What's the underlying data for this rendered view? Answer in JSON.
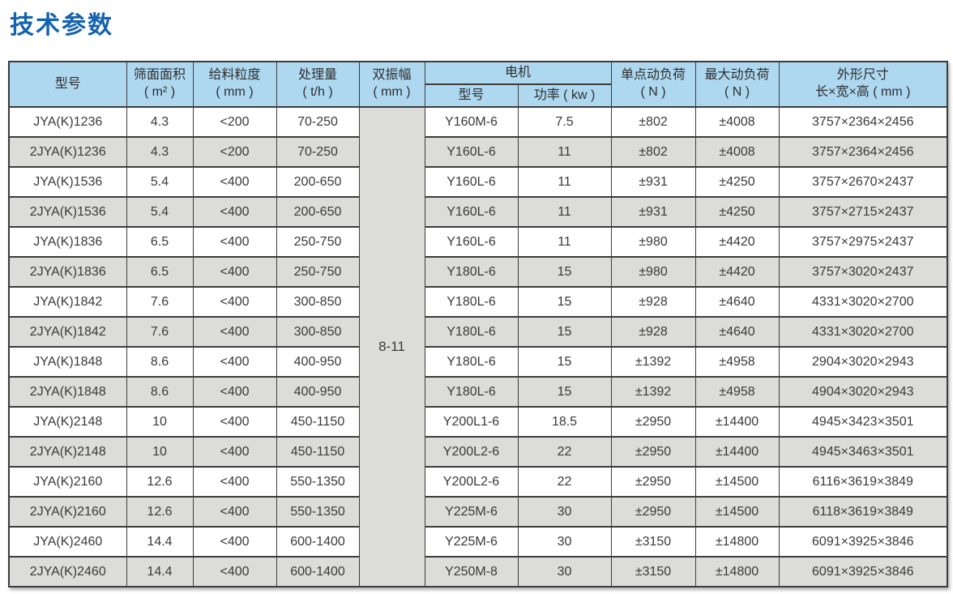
{
  "page_title": "技术参数",
  "colors": {
    "title": "#1563ae",
    "header_bg": "#aed8f0",
    "row_alt_bg": "#dcdcda",
    "border": "#3c3c3c"
  },
  "table": {
    "headers": {
      "model": "型号",
      "screen_area_l1": "筛面面积",
      "screen_area_l2": "( m² )",
      "feed_size_l1": "给料粒度",
      "feed_size_l2": "( mm )",
      "capacity_l1": "处理量",
      "capacity_l2": "( t/h )",
      "amplitude_l1": "双振幅",
      "amplitude_l2": "( mm )",
      "motor_group": "电机",
      "motor_model": "型号",
      "motor_power": "功率 ( kw )",
      "unit_load_l1": "单点动负荷",
      "unit_load_l2": "( N )",
      "max_load_l1": "最大动负荷",
      "max_load_l2": "( N )",
      "dimensions_l1": "外形尺寸",
      "dimensions_l2": "长×宽×高 ( mm )"
    },
    "amplitude_value": "8-11",
    "rows": [
      {
        "model": "JYA(K)1236",
        "area": "4.3",
        "feed": "<200",
        "capacity": "70-250",
        "motor": "Y160M-6",
        "power": "7.5",
        "unit_load": "±802",
        "max_load": "±4008",
        "size": "3757×2364×2456"
      },
      {
        "model": "2JYA(K)1236",
        "area": "4.3",
        "feed": "<200",
        "capacity": "70-250",
        "motor": "Y160L-6",
        "power": "11",
        "unit_load": "±802",
        "max_load": "±4008",
        "size": "3757×2364×2456"
      },
      {
        "model": "JYA(K)1536",
        "area": "5.4",
        "feed": "<400",
        "capacity": "200-650",
        "motor": "Y160L-6",
        "power": "11",
        "unit_load": "±931",
        "max_load": "±4250",
        "size": "3757×2670×2437"
      },
      {
        "model": "2JYA(K)1536",
        "area": "5.4",
        "feed": "<400",
        "capacity": "200-650",
        "motor": "Y160L-6",
        "power": "11",
        "unit_load": "±931",
        "max_load": "±4250",
        "size": "3757×2715×2437"
      },
      {
        "model": "JYA(K)1836",
        "area": "6.5",
        "feed": "<400",
        "capacity": "250-750",
        "motor": "Y160L-6",
        "power": "11",
        "unit_load": "±980",
        "max_load": "±4420",
        "size": "3757×2975×2437"
      },
      {
        "model": "2JYA(K)1836",
        "area": "6.5",
        "feed": "<400",
        "capacity": "250-750",
        "motor": "Y180L-6",
        "power": "15",
        "unit_load": "±980",
        "max_load": "±4420",
        "size": "3757×3020×2437"
      },
      {
        "model": "JYA(K)1842",
        "area": "7.6",
        "feed": "<400",
        "capacity": "300-850",
        "motor": "Y180L-6",
        "power": "15",
        "unit_load": "±928",
        "max_load": "±4640",
        "size": "4331×3020×2700"
      },
      {
        "model": "2JYA(K)1842",
        "area": "7.6",
        "feed": "<400",
        "capacity": "300-850",
        "motor": "Y180L-6",
        "power": "15",
        "unit_load": "±928",
        "max_load": "±4640",
        "size": "4331×3020×2700"
      },
      {
        "model": "JYA(K)1848",
        "area": "8.6",
        "feed": "<400",
        "capacity": "400-950",
        "motor": "Y180L-6",
        "power": "15",
        "unit_load": "±1392",
        "max_load": "±4958",
        "size": "2904×3020×2943"
      },
      {
        "model": "2JYA(K)1848",
        "area": "8.6",
        "feed": "<400",
        "capacity": "400-950",
        "motor": "Y180L-6",
        "power": "15",
        "unit_load": "±1392",
        "max_load": "±4958",
        "size": "4904×3020×2943"
      },
      {
        "model": "JYA(K)2148",
        "area": "10",
        "feed": "<400",
        "capacity": "450-1150",
        "motor": "Y200L1-6",
        "power": "18.5",
        "unit_load": "±2950",
        "max_load": "±14400",
        "size": "4945×3423×3501"
      },
      {
        "model": "2JYA(K)2148",
        "area": "10",
        "feed": "<400",
        "capacity": "450-1150",
        "motor": "Y200L2-6",
        "power": "22",
        "unit_load": "±2950",
        "max_load": "±14400",
        "size": "4945×3463×3501"
      },
      {
        "model": "JYA(K)2160",
        "area": "12.6",
        "feed": "<400",
        "capacity": "550-1350",
        "motor": "Y200L2-6",
        "power": "22",
        "unit_load": "±2950",
        "max_load": "±14500",
        "size": "6116×3619×3849"
      },
      {
        "model": "2JYA(K)2160",
        "area": "12.6",
        "feed": "<400",
        "capacity": "550-1350",
        "motor": "Y225M-6",
        "power": "30",
        "unit_load": "±2950",
        "max_load": "±14500",
        "size": "6118×3619×3849"
      },
      {
        "model": "JYA(K)2460",
        "area": "14.4",
        "feed": "<400",
        "capacity": "600-1400",
        "motor": "Y225M-6",
        "power": "30",
        "unit_load": "±3150",
        "max_load": "±14800",
        "size": "6091×3925×3846"
      },
      {
        "model": "2JYA(K)2460",
        "area": "14.4",
        "feed": "<400",
        "capacity": "600-1400",
        "motor": "Y250M-8",
        "power": "30",
        "unit_load": "±3150",
        "max_load": "±14800",
        "size": "6091×3925×3846"
      }
    ]
  }
}
